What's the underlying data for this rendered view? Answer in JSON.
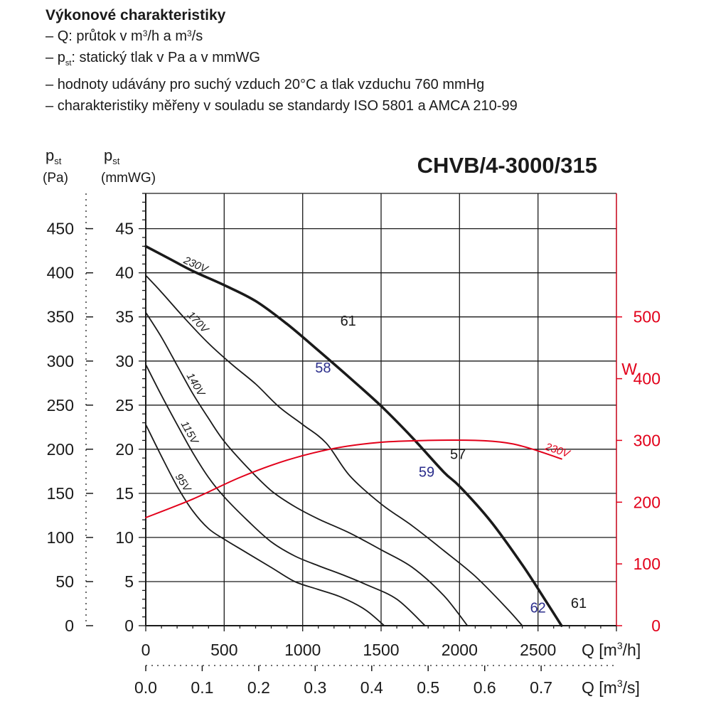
{
  "description": {
    "heading": "Výkonové charakteristiky",
    "lines": [
      {
        "dash": "–",
        "pre": "Q: průtok v m",
        "sup1": "3",
        "mid": "/h a m",
        "sup2": "3",
        "post": "/s"
      },
      {
        "dash": "–",
        "pre": "p",
        "sub": "st",
        "post": ": statický tlak v Pa a v mmWG"
      },
      {
        "dash": "–",
        "text": "hodnoty udávány pro suchý vzduch 20°C a tlak vzduchu 760 mmHg"
      },
      {
        "dash": "–",
        "text": "charakteristiky měřeny v souladu se standardy ISO 5801 a AMCA 210-99"
      }
    ]
  },
  "chart_data": {
    "type": "line",
    "title": "CHVB/4-3000/315",
    "axes": {
      "y_pa": {
        "label_main": "p",
        "label_sub": "st",
        "unit": "(Pa)",
        "ticks": [
          0,
          50,
          100,
          150,
          200,
          250,
          300,
          350,
          400,
          450
        ],
        "range": [
          0,
          490
        ]
      },
      "y_mmwg": {
        "label_main": "p",
        "label_sub": "st",
        "unit": "(mmWG)",
        "ticks": [
          0,
          5,
          10,
          15,
          20,
          25,
          30,
          35,
          40,
          45
        ],
        "range": [
          0,
          49
        ]
      },
      "y_w": {
        "label": "W",
        "ticks": [
          0,
          100,
          200,
          300,
          400,
          500
        ],
        "range": [
          0,
          700
        ],
        "color": "#e2001a"
      },
      "x_m3h": {
        "label_pre": "Q [m",
        "label_sup": "3",
        "label_post": "/h]",
        "ticks": [
          0,
          500,
          1000,
          1500,
          2000,
          2500
        ],
        "range": [
          0,
          3000
        ]
      },
      "x_m3s": {
        "label_pre": "Q [m",
        "label_sup": "3",
        "label_post": "/s]",
        "ticks": [
          "0.0",
          "0.1",
          "0.2",
          "0.3",
          "0.4",
          "0.5",
          "0.6",
          "0.7"
        ],
        "range": [
          0,
          0.8333
        ]
      }
    },
    "grid": true,
    "series": [
      {
        "name": "230V",
        "unit": "mmWG",
        "bold": true,
        "x": [
          0,
          150,
          300,
          500,
          700,
          900,
          1100,
          1300,
          1500,
          1700,
          1900,
          2000,
          2200,
          2400,
          2550,
          2650
        ],
        "y": [
          43,
          41.6,
          40.2,
          38.6,
          36.8,
          34.2,
          31.2,
          28.1,
          24.9,
          21.3,
          17.4,
          15.8,
          11.8,
          6.9,
          2.8,
          0
        ]
      },
      {
        "name": "170V",
        "unit": "mmWG",
        "x": [
          0,
          100,
          250,
          400,
          550,
          700,
          850,
          1000,
          1150,
          1300,
          1500,
          1700,
          1900,
          2100,
          2300,
          2400
        ],
        "y": [
          39.7,
          37.8,
          34.8,
          32.0,
          29.6,
          27.4,
          24.8,
          22.8,
          20.7,
          17.0,
          13.8,
          11.3,
          8.5,
          5.6,
          2.0,
          0
        ]
      },
      {
        "name": "140V",
        "unit": "mmWG",
        "x": [
          0,
          100,
          200,
          300,
          400,
          500,
          650,
          800,
          950,
          1100,
          1300,
          1500,
          1700,
          1900,
          2050
        ],
        "y": [
          35.5,
          32.7,
          29.5,
          26.3,
          23.5,
          20.9,
          17.9,
          15.3,
          13.5,
          12.1,
          10.5,
          8.6,
          6.6,
          3.4,
          0
        ]
      },
      {
        "name": "115V",
        "unit": "mmWG",
        "x": [
          0,
          100,
          200,
          300,
          400,
          500,
          650,
          800,
          950,
          1100,
          1250,
          1400,
          1600,
          1780
        ],
        "y": [
          29.6,
          26.1,
          22.8,
          19.6,
          16.8,
          14.6,
          11.9,
          9.5,
          7.9,
          6.8,
          5.8,
          4.7,
          3.0,
          0
        ]
      },
      {
        "name": "95V",
        "unit": "mmWG",
        "x": [
          0,
          100,
          200,
          300,
          400,
          500,
          650,
          800,
          950,
          1100,
          1250,
          1400,
          1520
        ],
        "y": [
          22.8,
          19.2,
          15.8,
          13.0,
          11.0,
          9.8,
          8.2,
          6.6,
          5.0,
          4.1,
          3.2,
          1.8,
          0
        ]
      },
      {
        "name": "230V",
        "unit": "W",
        "color": "#e2001a",
        "x": [
          0,
          300,
          600,
          900,
          1200,
          1500,
          1800,
          2100,
          2300,
          2450,
          2650
        ],
        "y": [
          175,
          205,
          240,
          268,
          287,
          297,
          300,
          300,
          296,
          287,
          270
        ]
      }
    ],
    "annotations": [
      {
        "text": "61",
        "color": "#1a1a1a"
      },
      {
        "text": "58",
        "color": "#2b2e8c"
      },
      {
        "text": "57",
        "color": "#1a1a1a"
      },
      {
        "text": "59",
        "color": "#2b2e8c"
      },
      {
        "text": "62",
        "color": "#2b2e8c"
      },
      {
        "text": "61",
        "color": "#1a1a1a"
      }
    ]
  }
}
